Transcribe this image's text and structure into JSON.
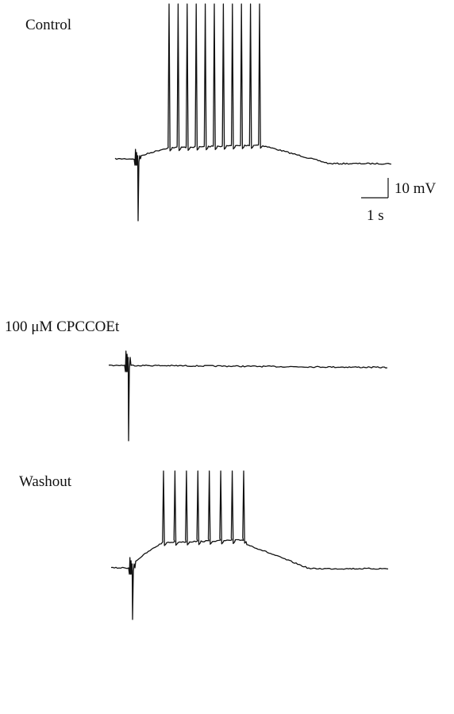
{
  "panels": [
    {
      "label": "Control"
    },
    {
      "label": "100 μM CPCCOEt"
    },
    {
      "label": "Washout"
    }
  ],
  "scale_bar": {
    "voltage": "10 mV",
    "time": "1 s"
  }
}
